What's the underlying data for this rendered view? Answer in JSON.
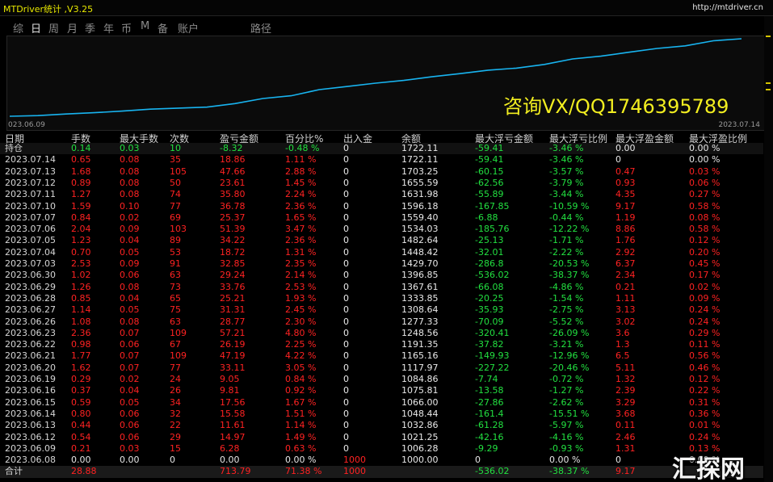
{
  "header": {
    "title": "MTDriver统计 ,V3.25",
    "url": "http://mtdriver.cn"
  },
  "tabs": [
    "综",
    "日",
    "周",
    "月",
    "季",
    "年",
    "币",
    "M",
    "备",
    "账户",
    "路径"
  ],
  "chart": {
    "start_label": "023.06.09",
    "end_label": "2023.07.14",
    "overlay": "咨询VX/QQ1746395789"
  },
  "table": {
    "columns": [
      "日期",
      "手数",
      "最大手数",
      "次数",
      "盈亏金额",
      "百分比%",
      "出入金",
      "余额",
      "最大浮亏金额",
      "最大浮亏比例",
      "最大浮盈金额",
      "最大浮盈比例"
    ],
    "rows": [
      [
        "持仓",
        "0.14",
        "0.03",
        "10",
        "-8.32",
        "-0.48 %",
        "0",
        "1722.11",
        "-59.41",
        "-3.46 %",
        "0.00",
        "0.00 %"
      ],
      [
        "2023.07.14",
        "0.65",
        "0.08",
        "35",
        "18.86",
        "1.11 %",
        "0",
        "1722.11",
        "-59.41",
        "-3.46 %",
        "0",
        "0.00 %"
      ],
      [
        "2023.07.13",
        "1.68",
        "0.08",
        "105",
        "47.66",
        "2.88 %",
        "0",
        "1703.25",
        "-60.15",
        "-3.57 %",
        "0.47",
        "0.03 %"
      ],
      [
        "2023.07.12",
        "0.89",
        "0.08",
        "50",
        "23.61",
        "1.45 %",
        "0",
        "1655.59",
        "-62.56",
        "-3.79 %",
        "0.93",
        "0.06 %"
      ],
      [
        "2023.07.11",
        "1.27",
        "0.08",
        "74",
        "35.80",
        "2.24 %",
        "0",
        "1631.98",
        "-55.89",
        "-3.44 %",
        "4.35",
        "0.27 %"
      ],
      [
        "2023.07.10",
        "1.59",
        "0.10",
        "77",
        "36.78",
        "2.36 %",
        "0",
        "1596.18",
        "-167.85",
        "-10.59 %",
        "9.17",
        "0.58 %"
      ],
      [
        "2023.07.07",
        "0.84",
        "0.02",
        "69",
        "25.37",
        "1.65 %",
        "0",
        "1559.40",
        "-6.88",
        "-0.44 %",
        "1.19",
        "0.08 %"
      ],
      [
        "2023.07.06",
        "2.04",
        "0.09",
        "103",
        "51.39",
        "3.47 %",
        "0",
        "1534.03",
        "-185.76",
        "-12.22 %",
        "8.86",
        "0.58 %"
      ],
      [
        "2023.07.05",
        "1.23",
        "0.04",
        "89",
        "34.22",
        "2.36 %",
        "0",
        "1482.64",
        "-25.13",
        "-1.71 %",
        "1.76",
        "0.12 %"
      ],
      [
        "2023.07.04",
        "0.70",
        "0.05",
        "53",
        "18.72",
        "1.31 %",
        "0",
        "1448.42",
        "-32.01",
        "-2.22 %",
        "2.92",
        "0.20 %"
      ],
      [
        "2023.07.03",
        "2.53",
        "0.09",
        "91",
        "32.85",
        "2.35 %",
        "0",
        "1429.70",
        "-286.8",
        "-20.53 %",
        "6.37",
        "0.45 %"
      ],
      [
        "2023.06.30",
        "1.02",
        "0.06",
        "63",
        "29.24",
        "2.14 %",
        "0",
        "1396.85",
        "-536.02",
        "-38.37 %",
        "2.34",
        "0.17 %"
      ],
      [
        "2023.06.29",
        "1.26",
        "0.08",
        "73",
        "33.76",
        "2.53 %",
        "0",
        "1367.61",
        "-66.08",
        "-4.86 %",
        "0.21",
        "0.02 %"
      ],
      [
        "2023.06.28",
        "0.85",
        "0.04",
        "65",
        "25.21",
        "1.93 %",
        "0",
        "1333.85",
        "-20.25",
        "-1.54 %",
        "1.11",
        "0.09 %"
      ],
      [
        "2023.06.27",
        "1.14",
        "0.05",
        "75",
        "31.31",
        "2.45 %",
        "0",
        "1308.64",
        "-35.93",
        "-2.75 %",
        "3.13",
        "0.24 %"
      ],
      [
        "2023.06.26",
        "1.08",
        "0.08",
        "63",
        "28.77",
        "2.30 %",
        "0",
        "1277.33",
        "-70.09",
        "-5.52 %",
        "3.02",
        "0.24 %"
      ],
      [
        "2023.06.23",
        "2.36",
        "0.07",
        "109",
        "57.21",
        "4.80 %",
        "0",
        "1248.56",
        "-320.41",
        "-26.09 %",
        "3.6",
        "0.29 %"
      ],
      [
        "2023.06.22",
        "0.98",
        "0.06",
        "67",
        "26.19",
        "2.25 %",
        "0",
        "1191.35",
        "-37.82",
        "-3.21 %",
        "1.3",
        "0.11 %"
      ],
      [
        "2023.06.21",
        "1.77",
        "0.07",
        "109",
        "47.19",
        "4.22 %",
        "0",
        "1165.16",
        "-149.93",
        "-12.96 %",
        "6.5",
        "0.56 %"
      ],
      [
        "2023.06.20",
        "1.62",
        "0.07",
        "77",
        "33.11",
        "3.05 %",
        "0",
        "1117.97",
        "-227.22",
        "-20.46 %",
        "5.11",
        "0.46 %"
      ],
      [
        "2023.06.19",
        "0.29",
        "0.02",
        "24",
        "9.05",
        "0.84 %",
        "0",
        "1084.86",
        "-7.74",
        "-0.72 %",
        "1.32",
        "0.12 %"
      ],
      [
        "2023.06.16",
        "0.37",
        "0.04",
        "26",
        "9.81",
        "0.92 %",
        "0",
        "1075.81",
        "-13.58",
        "-1.27 %",
        "2.39",
        "0.22 %"
      ],
      [
        "2023.06.15",
        "0.59",
        "0.05",
        "34",
        "17.56",
        "1.67 %",
        "0",
        "1066.00",
        "-27.86",
        "-2.62 %",
        "3.29",
        "0.31 %"
      ],
      [
        "2023.06.14",
        "0.80",
        "0.06",
        "32",
        "15.58",
        "1.51 %",
        "0",
        "1048.44",
        "-161.4",
        "-15.51 %",
        "3.68",
        "0.36 %"
      ],
      [
        "2023.06.13",
        "0.44",
        "0.06",
        "22",
        "11.61",
        "1.14 %",
        "0",
        "1032.86",
        "-61.28",
        "-5.97 %",
        "0.11",
        "0.01 %"
      ],
      [
        "2023.06.12",
        "0.54",
        "0.06",
        "29",
        "14.97",
        "1.49 %",
        "0",
        "1021.25",
        "-42.16",
        "-4.16 %",
        "2.46",
        "0.24 %"
      ],
      [
        "2023.06.09",
        "0.21",
        "0.03",
        "15",
        "6.28",
        "0.63 %",
        "0",
        "1006.28",
        "-9.29",
        "-0.93 %",
        "1.31",
        "0.13 %"
      ],
      [
        "2023.06.08",
        "0.00",
        "0.00",
        "0",
        "0.00",
        "0.00 %",
        "1000",
        "1000.00",
        "0",
        "0.00 %",
        "0",
        "0.00 %"
      ]
    ],
    "total": [
      "合计",
      "28.88",
      "713.79",
      "71.38 %",
      "1000",
      "-536.02",
      "-38.37 %",
      "9.17"
    ]
  },
  "watermark": "汇探网"
}
